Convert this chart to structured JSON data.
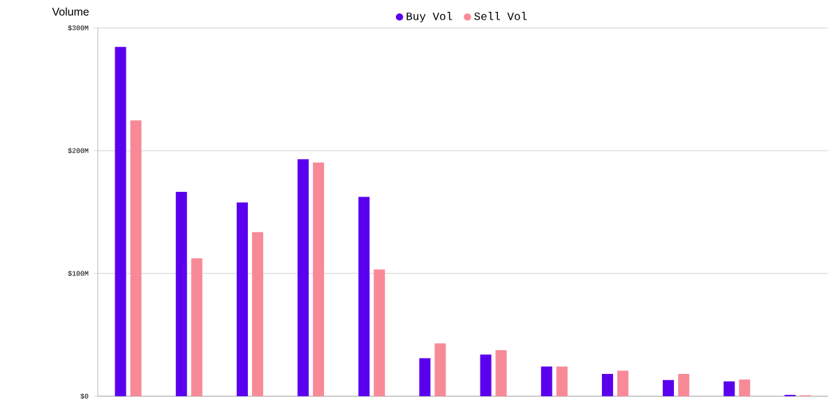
{
  "chart_data": {
    "type": "bar",
    "ylabel": "Volume",
    "categories": [
      null,
      null,
      null,
      null,
      null,
      null,
      null,
      null,
      null,
      null,
      null,
      null
    ],
    "series": [
      {
        "name": "Buy Vol",
        "color": "#5b00ee",
        "values": [
          284.5,
          166.5,
          157.8,
          193,
          162.3,
          31,
          34,
          24.2,
          18.2,
          13.2,
          12.1,
          1.1
        ]
      },
      {
        "name": "Sell Vol",
        "color": "#f88a98",
        "values": [
          224.7,
          112.4,
          133.6,
          190.3,
          103.3,
          43.1,
          37.5,
          24.2,
          20.8,
          18.2,
          13.6,
          0.8
        ]
      }
    ],
    "ylim": [
      0,
      300
    ],
    "yticks": [
      {
        "value": 0,
        "label": "$0"
      },
      {
        "value": 100,
        "label": "$100M"
      },
      {
        "value": 200,
        "label": "$200M"
      },
      {
        "value": 300,
        "label": "$300M"
      }
    ],
    "grid": "y",
    "legend": "top",
    "tick_labels": "y"
  }
}
